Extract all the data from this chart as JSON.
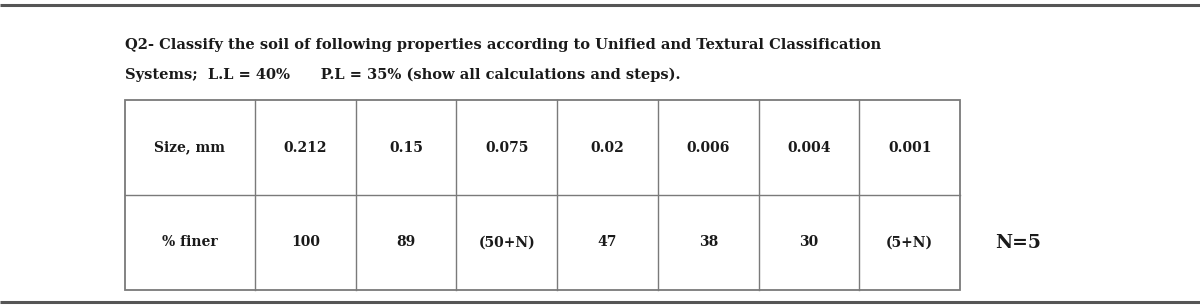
{
  "title_line1": "Q2- Classify the soil of following properties according to Unified and Textural Classification",
  "title_line2": "Systems;  L.L = 40%      P.L = 35% (show all calculations and steps).",
  "table_headers": [
    "Size, mm",
    "0.212",
    "0.15",
    "0.075",
    "0.02",
    "0.006",
    "0.004",
    "0.001"
  ],
  "table_row": [
    "% finer",
    "100",
    "89",
    "(50+N)",
    "47",
    "38",
    "30",
    "(5+N)"
  ],
  "n_label": "N=5",
  "bg_color": "#ffffff",
  "text_color": "#1a1a1a",
  "table_border_color": "#7a7a7a",
  "top_line_color": "#555555",
  "bottom_line_color": "#555555",
  "title_fontsize": 10.5,
  "table_fontsize": 10.0,
  "n_fontsize": 13.5,
  "fig_width": 12.0,
  "fig_height": 3.08,
  "dpi": 100
}
